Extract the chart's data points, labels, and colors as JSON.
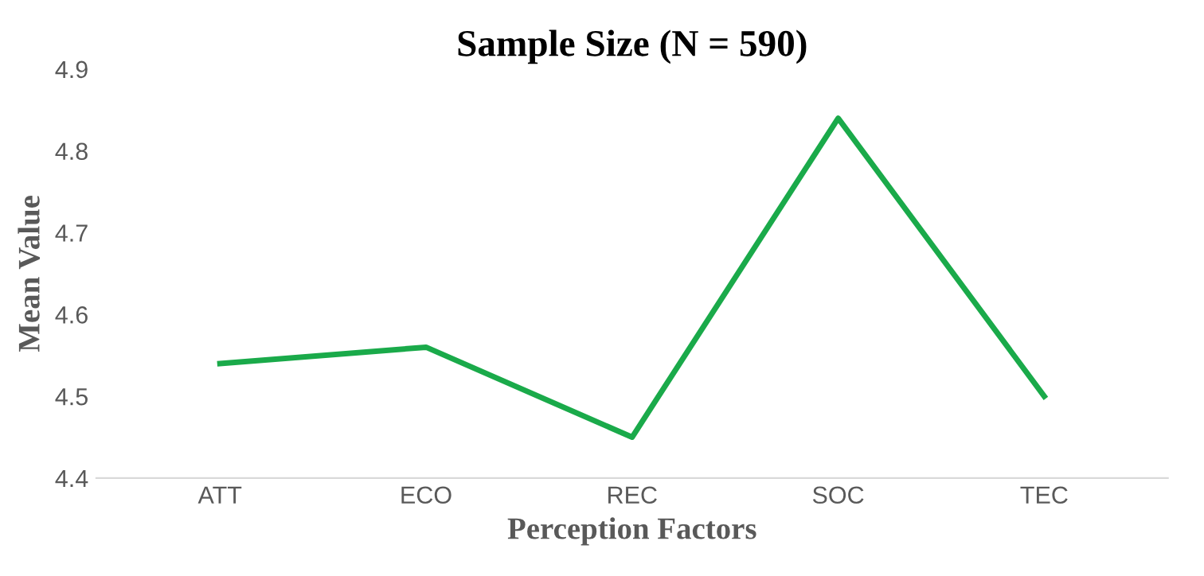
{
  "chart_data": {
    "type": "line",
    "title": "Sample Size (N = 590)",
    "xlabel": "Perception Factors",
    "ylabel": "Mean Value",
    "categories": [
      "ATT",
      "ECO",
      "REC",
      "SOC",
      "TEC"
    ],
    "series": [
      {
        "color": "#1aaa4a",
        "values": [
          4.54,
          4.56,
          4.45,
          4.84,
          4.5
        ]
      }
    ],
    "ylim": [
      4.4,
      4.9
    ],
    "yticks": [
      4.4,
      4.5,
      4.6,
      4.7,
      4.8,
      4.9
    ],
    "grid": false,
    "legend": false,
    "marker": "none",
    "line_style": "solid"
  }
}
